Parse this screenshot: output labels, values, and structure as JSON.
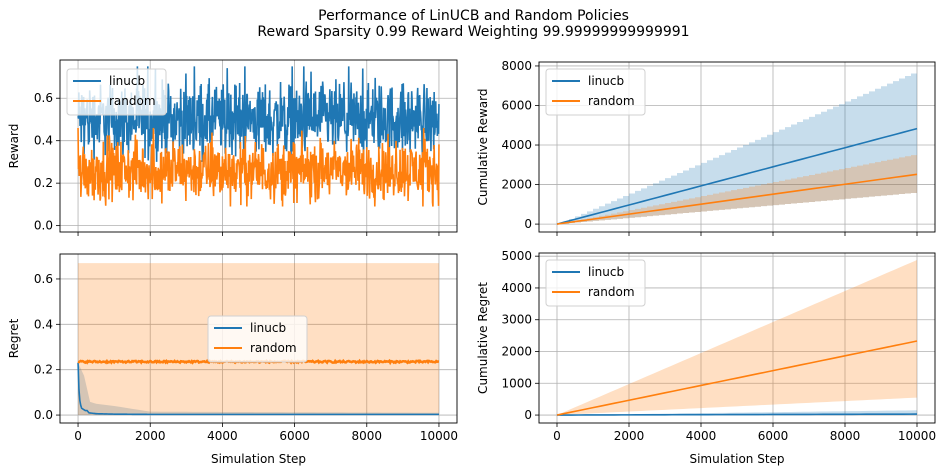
{
  "title": {
    "line1": "Performance of LinUCB and Random Policies",
    "line2": "Reward Sparsity 0.99 Reward Weighting 99.99999999999991"
  },
  "colors": {
    "linucb": "#1f77b4",
    "random": "#ff7f0e",
    "linucb_band": "#1f77b4",
    "random_band": "#ff7f0e",
    "grid": "#b0b0b0"
  },
  "chart_data": [
    {
      "id": "reward",
      "type": "line",
      "title": "",
      "xlabel": "",
      "ylabel": "Reward",
      "xlim": [
        -500,
        10500
      ],
      "ylim": [
        -0.03,
        0.78
      ],
      "xticks": [
        0,
        2000,
        4000,
        6000,
        8000,
        10000
      ],
      "xtick_labels_shown": false,
      "yticks": [
        0.0,
        0.2,
        0.4,
        0.6
      ],
      "ytick_labels": [
        "0.0",
        "0.2",
        "0.4",
        "0.6"
      ],
      "grid": true,
      "legend": "upper-left",
      "series": [
        {
          "name": "linucb",
          "kind": "noisy",
          "x_range": [
            0,
            10000
          ],
          "mean": 0.5,
          "min": 0.3,
          "max": 0.75
        },
        {
          "name": "random",
          "kind": "noisy",
          "x_range": [
            0,
            10000
          ],
          "mean": 0.26,
          "min": 0.09,
          "max": 0.46
        }
      ]
    },
    {
      "id": "cumulative_reward",
      "type": "line",
      "title": "",
      "xlabel": "",
      "ylabel": "Cumulative Reward",
      "xlim": [
        -500,
        10500
      ],
      "ylim": [
        -400,
        8200
      ],
      "xticks": [
        0,
        2000,
        4000,
        6000,
        8000,
        10000
      ],
      "xtick_labels_shown": false,
      "yticks": [
        0,
        2000,
        4000,
        6000,
        8000
      ],
      "ytick_labels": [
        "0",
        "2000",
        "4000",
        "6000",
        "8000"
      ],
      "grid": true,
      "legend": "upper-left",
      "series": [
        {
          "name": "linucb",
          "x": [
            0,
            10000
          ],
          "y": [
            0,
            4830
          ],
          "band_lower": [
            0,
            1600
          ],
          "band_upper": [
            0,
            7750
          ]
        },
        {
          "name": "random",
          "x": [
            0,
            10000
          ],
          "y": [
            0,
            2520
          ],
          "band_lower": [
            0,
            1600
          ],
          "band_upper": [
            0,
            3550
          ]
        }
      ]
    },
    {
      "id": "regret",
      "type": "line",
      "title": "",
      "xlabel": "Simulation Step",
      "ylabel": "Regret",
      "xlim": [
        -500,
        10500
      ],
      "ylim": [
        -0.035,
        0.71
      ],
      "xticks": [
        0,
        2000,
        4000,
        6000,
        8000,
        10000
      ],
      "xtick_labels": [
        "0",
        "2000",
        "4000",
        "6000",
        "8000",
        "10000"
      ],
      "xtick_labels_shown": true,
      "yticks": [
        0.0,
        0.2,
        0.4,
        0.6
      ],
      "ytick_labels": [
        "0.0",
        "0.2",
        "0.4",
        "0.6"
      ],
      "grid": true,
      "legend": "center",
      "series": [
        {
          "name": "linucb",
          "x": [
            0,
            30,
            60,
            100,
            200,
            250,
            300,
            500,
            1000,
            2000,
            10000
          ],
          "y": [
            0.23,
            0.09,
            0.05,
            0.03,
            0.02,
            0.02,
            0.01,
            0.006,
            0.004,
            0.003,
            0.003
          ],
          "band_lower": [
            0,
            0,
            0,
            0,
            0,
            0,
            0,
            0,
            0,
            0,
            0
          ],
          "band_upper": [
            0.23,
            0.3,
            0.15,
            0.12,
            0.2,
            0.1,
            0.06,
            0.05,
            0.04,
            0.015,
            0.01
          ]
        },
        {
          "name": "random",
          "x": [
            0,
            10000
          ],
          "y": [
            0.235,
            0.235
          ],
          "band_lower": [
            0,
            0
          ],
          "band_upper": [
            0.67,
            0.67
          ]
        }
      ]
    },
    {
      "id": "cumulative_regret",
      "type": "line",
      "title": "",
      "xlabel": "Simulation Step",
      "ylabel": "Cumulative Regret",
      "xlim": [
        -500,
        10500
      ],
      "ylim": [
        -250,
        5100
      ],
      "xticks": [
        0,
        2000,
        4000,
        6000,
        8000,
        10000
      ],
      "xtick_labels": [
        "0",
        "2000",
        "4000",
        "6000",
        "8000",
        "10000"
      ],
      "xtick_labels_shown": true,
      "yticks": [
        0,
        1000,
        2000,
        3000,
        4000,
        5000
      ],
      "ytick_labels": [
        "0",
        "1000",
        "2000",
        "3000",
        "4000",
        "5000"
      ],
      "grid": true,
      "legend": "upper-left",
      "series": [
        {
          "name": "linucb",
          "x": [
            0,
            10000
          ],
          "y": [
            0,
            30
          ],
          "band_lower": [
            0,
            0
          ],
          "band_upper": [
            0,
            150
          ]
        },
        {
          "name": "random",
          "x": [
            0,
            10000
          ],
          "y": [
            0,
            2330
          ],
          "band_lower": [
            0,
            550
          ],
          "band_upper": [
            0,
            4880
          ]
        }
      ]
    }
  ]
}
